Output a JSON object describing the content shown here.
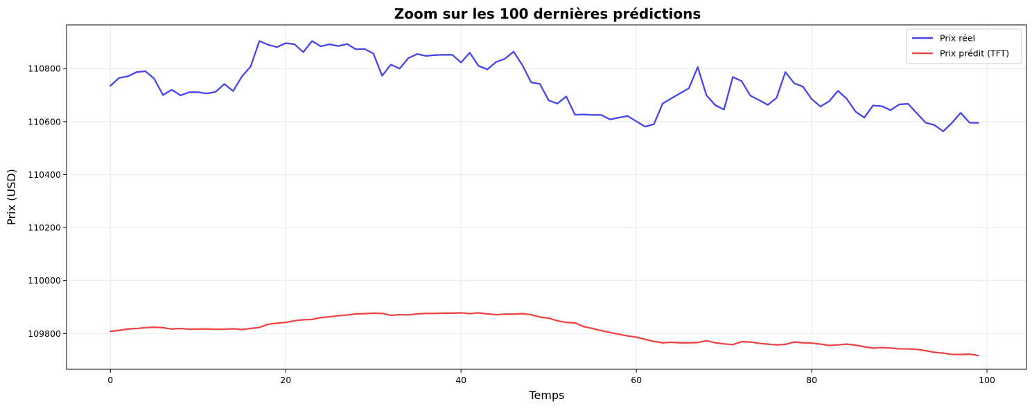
{
  "chart_data": {
    "type": "line",
    "title": "Zoom sur les 100 dernières prédictions",
    "xlabel": "Temps",
    "ylabel": "Prix (USD)",
    "xlim": [
      -5,
      104.5
    ],
    "ylim": [
      109665,
      110965
    ],
    "xticks": [
      0,
      20,
      40,
      60,
      80,
      100
    ],
    "xtick_labels": [
      "0",
      "20",
      "40",
      "60",
      "80",
      "100"
    ],
    "yticks": [
      109800,
      110000,
      110200,
      110400,
      110600,
      110800
    ],
    "ytick_labels": [
      "109800",
      "110000",
      "110200",
      "110400",
      "110600",
      "110800"
    ],
    "grid": true,
    "legend_position": "top-right",
    "series": [
      {
        "name": "Prix réel",
        "color": "#4444ee",
        "values": [
          110735,
          110765,
          110771,
          110787,
          110790,
          110762,
          110700,
          110720,
          110699,
          110711,
          110711,
          110706,
          110712,
          110742,
          110715,
          110770,
          110808,
          110904,
          110890,
          110881,
          110896,
          110892,
          110862,
          110904,
          110884,
          110892,
          110885,
          110893,
          110873,
          110874,
          110857,
          110773,
          110815,
          110800,
          110840,
          110855,
          110848,
          110851,
          110852,
          110852,
          110823,
          110860,
          110810,
          110797,
          110825,
          110837,
          110864,
          110813,
          110748,
          110742,
          110680,
          110668,
          110695,
          110626,
          110627,
          110625,
          110625,
          110608,
          110615,
          110621,
          110601,
          110581,
          110590,
          110668,
          110688,
          110707,
          110726,
          110806,
          110699,
          110662,
          110645,
          110768,
          110753,
          110698,
          110681,
          110663,
          110690,
          110787,
          110745,
          110732,
          110685,
          110657,
          110677,
          110716,
          110686,
          110638,
          110615,
          110661,
          110658,
          110643,
          110665,
          110667,
          110631,
          110596,
          110587,
          110563,
          110595,
          110633,
          110596,
          110595
        ]
      },
      {
        "name": "Prix prédit (TFT)",
        "color": "#ee4444",
        "values": [
          109808,
          109812,
          109817,
          109819,
          109822,
          109824,
          109822,
          109817,
          109819,
          109816,
          109817,
          109817,
          109816,
          109816,
          109818,
          109815,
          109819,
          109823,
          109835,
          109839,
          109842,
          109848,
          109852,
          109853,
          109860,
          109863,
          109867,
          109870,
          109874,
          109875,
          109877,
          109876,
          109869,
          109871,
          109870,
          109874,
          109876,
          109876,
          109877,
          109877,
          109878,
          109875,
          109878,
          109874,
          109871,
          109873,
          109873,
          109875,
          109871,
          109862,
          109858,
          109848,
          109842,
          109840,
          109826,
          109819,
          109811,
          109804,
          109797,
          109791,
          109786,
          109778,
          109770,
          109765,
          109767,
          109765,
          109765,
          109766,
          109773,
          109765,
          109761,
          109758,
          109769,
          109768,
          109763,
          109760,
          109757,
          109759,
          109768,
          109765,
          109764,
          109760,
          109755,
          109757,
          109760,
          109756,
          109750,
          109745,
          109747,
          109745,
          109742,
          109742,
          109740,
          109735,
          109729,
          109726,
          109721,
          109721,
          109722,
          109717
        ]
      }
    ]
  },
  "colors": {
    "grid": "#e8e8e8",
    "axes": "#000000"
  }
}
